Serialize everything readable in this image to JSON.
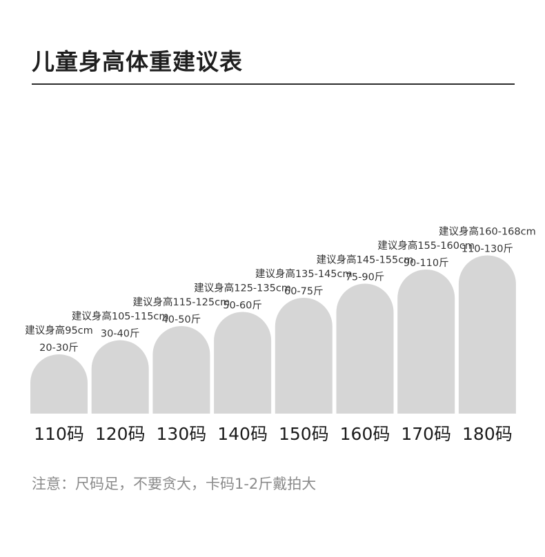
{
  "title": "儿童身高体重建议表",
  "note": "注意：尺码足，不要贪大，卡码1-2斤戴拍大",
  "chart_data": {
    "type": "bar",
    "title": "儿童身高体重建议表",
    "categories": [
      "110码",
      "120码",
      "130码",
      "140码",
      "150码",
      "160码",
      "170码",
      "180码"
    ],
    "values": [
      1,
      2,
      3,
      4,
      5,
      6,
      7,
      8
    ],
    "height_labels": [
      "建议身高95cm",
      "建议身高105-115cm",
      "建议身高115-125cm",
      "建议身高125-135cm",
      "建议身高135-145cm",
      "建议身高145-155cm",
      "建议身高155-160cm",
      "建议身高160-168cm"
    ],
    "weight_labels": [
      "20-30斤",
      "30-40斤",
      "40-50斤",
      "50-60斤",
      "60-75斤",
      "75-90斤",
      "90-110斤",
      "110-130斤"
    ],
    "bar_color": "#d6d6d6",
    "grid": false,
    "legend": "none"
  }
}
